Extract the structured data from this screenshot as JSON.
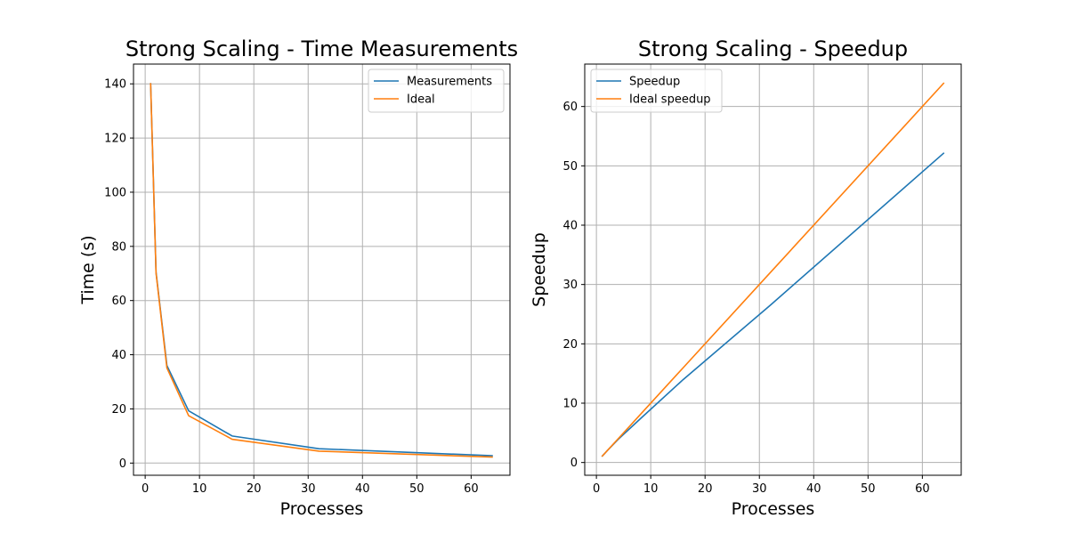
{
  "chart_data": [
    {
      "type": "line",
      "title": "Strong Scaling - Time Measurements",
      "xlabel": "Processes",
      "ylabel": "Time (s)",
      "xlim": [
        -2.15,
        67.15
      ],
      "ylim": [
        -4.5,
        147.3
      ],
      "xticks": [
        0,
        10,
        20,
        30,
        40,
        50,
        60
      ],
      "yticks": [
        0,
        20,
        40,
        60,
        80,
        100,
        120,
        140
      ],
      "grid": true,
      "legend_position": "top-right",
      "x": [
        1,
        2,
        4,
        8,
        16,
        32,
        64
      ],
      "series": [
        {
          "name": "Measurements",
          "color": "#1f77b4",
          "values": [
            140.3,
            70.5,
            36.0,
            19.3,
            10.0,
            5.3,
            2.7
          ]
        },
        {
          "name": "Ideal",
          "color": "#ff7f0e",
          "values": [
            140.3,
            70.15,
            35.1,
            17.5,
            8.8,
            4.4,
            2.2
          ]
        }
      ]
    },
    {
      "type": "line",
      "title": "Strong Scaling - Speedup",
      "xlabel": "Processes",
      "ylabel": "Speedup",
      "xlim": [
        -2.15,
        67.15
      ],
      "ylim": [
        -2.15,
        67.15
      ],
      "xticks": [
        0,
        10,
        20,
        30,
        40,
        50,
        60
      ],
      "yticks": [
        0,
        10,
        20,
        30,
        40,
        50,
        60
      ],
      "grid": true,
      "legend_position": "top-left",
      "x": [
        1,
        2,
        4,
        8,
        16,
        32,
        64
      ],
      "series": [
        {
          "name": "Speedup",
          "color": "#1f77b4",
          "values": [
            1,
            2.0,
            3.9,
            7.3,
            14.0,
            26.5,
            52.2
          ]
        },
        {
          "name": "Ideal speedup",
          "color": "#ff7f0e",
          "values": [
            1,
            2,
            4,
            8,
            16,
            32,
            64
          ]
        }
      ]
    }
  ]
}
